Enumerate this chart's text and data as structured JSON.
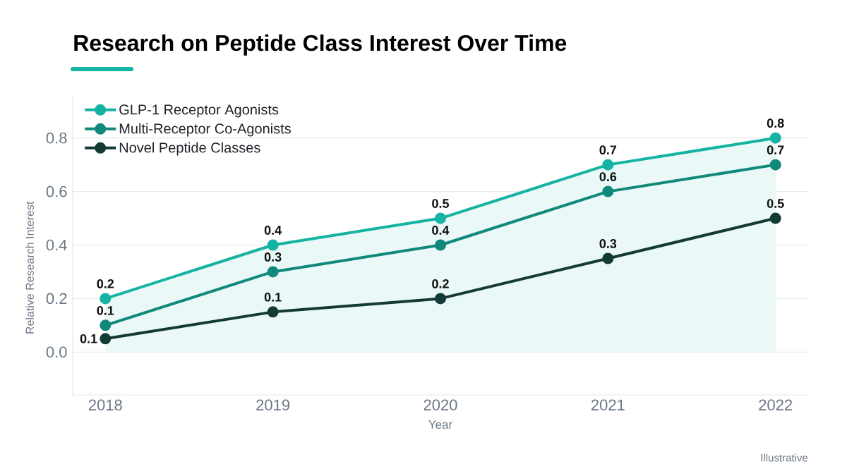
{
  "chart_data": {
    "type": "line",
    "title": "Research on Peptide Class Interest Over Time",
    "xlabel": "Year",
    "ylabel": "Relative Research Interest",
    "annotations": [
      "Illustrative"
    ],
    "categories": [
      "2018",
      "2019",
      "2020",
      "2021",
      "2022"
    ],
    "series": [
      {
        "name": "GLP-1 Receptor Agonists",
        "color": "#14b3a2",
        "values": [
          0.2,
          0.4,
          0.5,
          0.7,
          0.8
        ],
        "value_labels": [
          "0.2",
          "0.4",
          "0.5",
          "0.7",
          "0.8"
        ],
        "lower": [
          0,
          0,
          0,
          0,
          0
        ],
        "upper": [
          0.2,
          0.4,
          0.5,
          0.7,
          0.8
        ]
      },
      {
        "name": "Multi-Receptor Co-Agonists",
        "color": "#10897b",
        "values": [
          0.1,
          0.3,
          0.4,
          0.6,
          0.7
        ],
        "value_labels": [
          "0.1",
          "0.3",
          "0.4",
          "0.6",
          "0.7"
        ]
      },
      {
        "name": "Novel Peptide Classes",
        "color": "#143a36",
        "values": [
          0.05,
          0.15,
          0.2,
          0.35,
          0.5
        ],
        "value_labels": [
          "0.1",
          "0.1",
          "0.2",
          "0.3",
          "0.5"
        ]
      }
    ],
    "ylim": [
      -0.16,
      0.96
    ],
    "yticks": [
      {
        "value": 0,
        "label": "0.0"
      },
      0.2,
      0.4,
      0.6,
      0.8
    ],
    "grid": "y",
    "legend": "top left",
    "marker": "circle",
    "line_style": "solid"
  }
}
